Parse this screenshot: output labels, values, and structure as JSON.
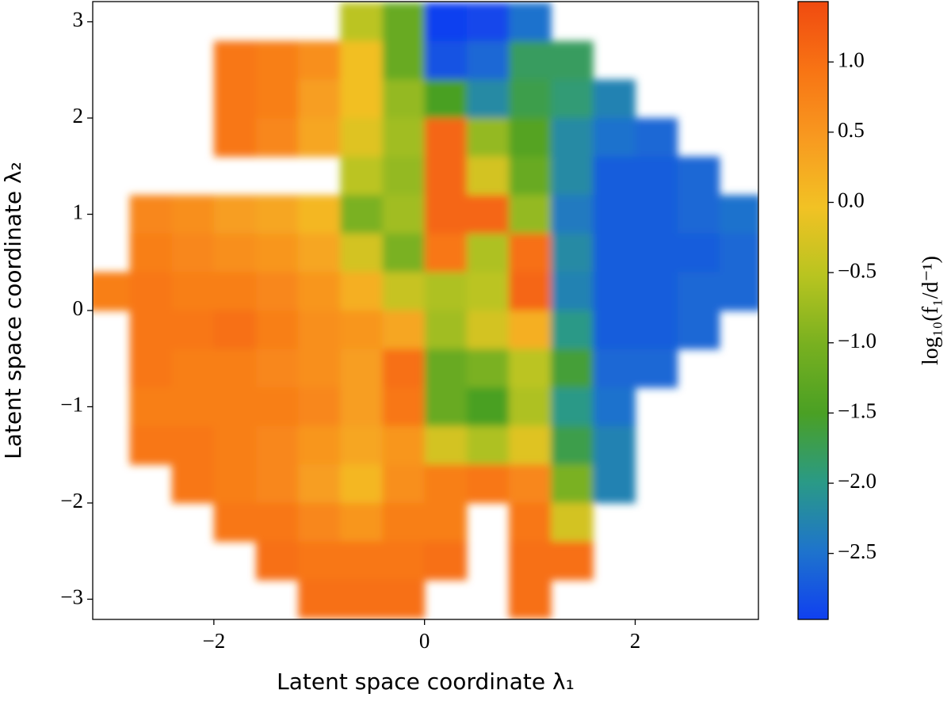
{
  "chart_data": {
    "type": "heatmap",
    "xlabel": "Latent space coordinate λ₁",
    "ylabel": "Latent space coordinate λ₂",
    "colorbar_label": "log₁₀(f₁/d⁻¹)",
    "xlim": [
      -3.15,
      3.17
    ],
    "ylim": [
      -3.21,
      3.21
    ],
    "xticks": [
      {
        "value": -2,
        "label": "−2"
      },
      0,
      2
    ],
    "yticks": [
      {
        "value": -3,
        "label": "−3"
      },
      {
        "value": -2,
        "label": "−2"
      },
      {
        "value": -1,
        "label": "−1"
      },
      0,
      1,
      2,
      3
    ],
    "clim": [
      -2.97,
      1.43
    ],
    "cticks": [
      {
        "value": 1.0,
        "label": "1.0"
      },
      {
        "value": 0.5,
        "label": "0.5"
      },
      {
        "value": 0.0,
        "label": "0.0"
      },
      {
        "value": -0.5,
        "label": "−0.5"
      },
      {
        "value": -1.0,
        "label": "−1.0"
      },
      {
        "value": -1.5,
        "label": "−1.5"
      },
      {
        "value": -2.0,
        "label": "−2.0"
      },
      {
        "value": -2.5,
        "label": "−2.5"
      }
    ],
    "colormap": [
      "#1040f0",
      "#1e74cc",
      "#2a9a86",
      "#4aa024",
      "#78b020",
      "#b8c420",
      "#f2c224",
      "#f89a20",
      "#f87414",
      "#f04a10"
    ],
    "x": [
      -3.0,
      -2.6,
      -2.2,
      -1.8,
      -1.4,
      -1.0,
      -0.6,
      -0.2,
      0.2,
      0.6,
      1.0,
      1.4,
      1.8,
      2.2,
      2.6,
      3.0
    ],
    "y": [
      3.0,
      2.6,
      2.2,
      1.8,
      1.4,
      1.0,
      0.6,
      0.2,
      -0.2,
      -0.6,
      -1.0,
      -1.4,
      -1.8,
      -2.2,
      -2.6,
      -3.0
    ],
    "z": [
      [
        null,
        null,
        null,
        null,
        null,
        null,
        -0.5,
        -1.2,
        -3.0,
        -2.9,
        -2.5,
        null,
        null,
        null,
        null,
        null
      ],
      [
        null,
        null,
        null,
        0.9,
        0.8,
        0.6,
        0.0,
        -1.2,
        -2.8,
        -2.6,
        -1.8,
        -1.8,
        null,
        null,
        null,
        null
      ],
      [
        null,
        null,
        null,
        0.9,
        0.8,
        0.4,
        0.0,
        -0.8,
        -1.5,
        -2.2,
        -1.7,
        -1.9,
        -2.3,
        null,
        null,
        null
      ],
      [
        null,
        null,
        null,
        0.9,
        0.7,
        0.3,
        -0.2,
        -0.7,
        1.1,
        -0.8,
        -1.4,
        -2.2,
        -2.5,
        -2.6,
        null,
        null
      ],
      [
        null,
        null,
        null,
        null,
        null,
        null,
        -0.5,
        -0.8,
        1.1,
        -0.3,
        -1.2,
        -2.2,
        -2.7,
        -2.7,
        -2.6,
        null
      ],
      [
        null,
        0.7,
        0.6,
        0.4,
        0.3,
        0.1,
        -1.0,
        -0.7,
        1.1,
        1.1,
        -0.8,
        -2.4,
        -2.7,
        -2.7,
        -2.6,
        -2.5
      ],
      [
        null,
        0.8,
        0.7,
        0.6,
        0.5,
        0.3,
        -0.3,
        -1.0,
        0.9,
        -0.6,
        1.0,
        -2.2,
        -2.7,
        -2.7,
        -2.7,
        -2.6
      ],
      [
        0.8,
        0.9,
        0.8,
        0.8,
        0.7,
        0.5,
        0.2,
        -0.4,
        -0.6,
        -0.5,
        1.1,
        -2.3,
        -2.7,
        -2.7,
        -2.6,
        -2.6
      ],
      [
        null,
        0.9,
        0.9,
        1.0,
        0.8,
        0.6,
        0.5,
        0.3,
        -0.7,
        -0.3,
        0.2,
        -2.0,
        -2.7,
        -2.7,
        -2.6,
        null
      ],
      [
        null,
        0.9,
        0.8,
        0.8,
        0.7,
        0.6,
        0.4,
        1.0,
        -1.2,
        -1.0,
        -0.5,
        -1.6,
        -2.6,
        -2.6,
        null,
        null
      ],
      [
        null,
        0.8,
        0.8,
        0.8,
        0.8,
        0.7,
        0.4,
        0.9,
        -1.2,
        -1.5,
        -0.6,
        -2.0,
        -2.5,
        null,
        null,
        null
      ],
      [
        null,
        0.9,
        0.9,
        0.8,
        0.7,
        0.5,
        0.3,
        0.5,
        -0.3,
        -0.6,
        -0.2,
        -1.7,
        -2.3,
        null,
        null,
        null
      ],
      [
        null,
        null,
        0.9,
        0.8,
        0.7,
        0.4,
        0.1,
        0.6,
        0.8,
        0.9,
        0.7,
        -1.0,
        -2.3,
        null,
        null,
        null
      ],
      [
        null,
        null,
        null,
        0.9,
        0.9,
        0.7,
        0.5,
        0.8,
        0.8,
        null,
        0.9,
        -0.3,
        null,
        null,
        null,
        null
      ],
      [
        null,
        null,
        null,
        null,
        1.0,
        0.9,
        0.9,
        0.9,
        1.0,
        null,
        1.0,
        1.0,
        null,
        null,
        null,
        null
      ],
      [
        null,
        null,
        null,
        null,
        null,
        1.0,
        1.0,
        1.0,
        null,
        null,
        1.0,
        null,
        null,
        null,
        null,
        null
      ]
    ]
  }
}
